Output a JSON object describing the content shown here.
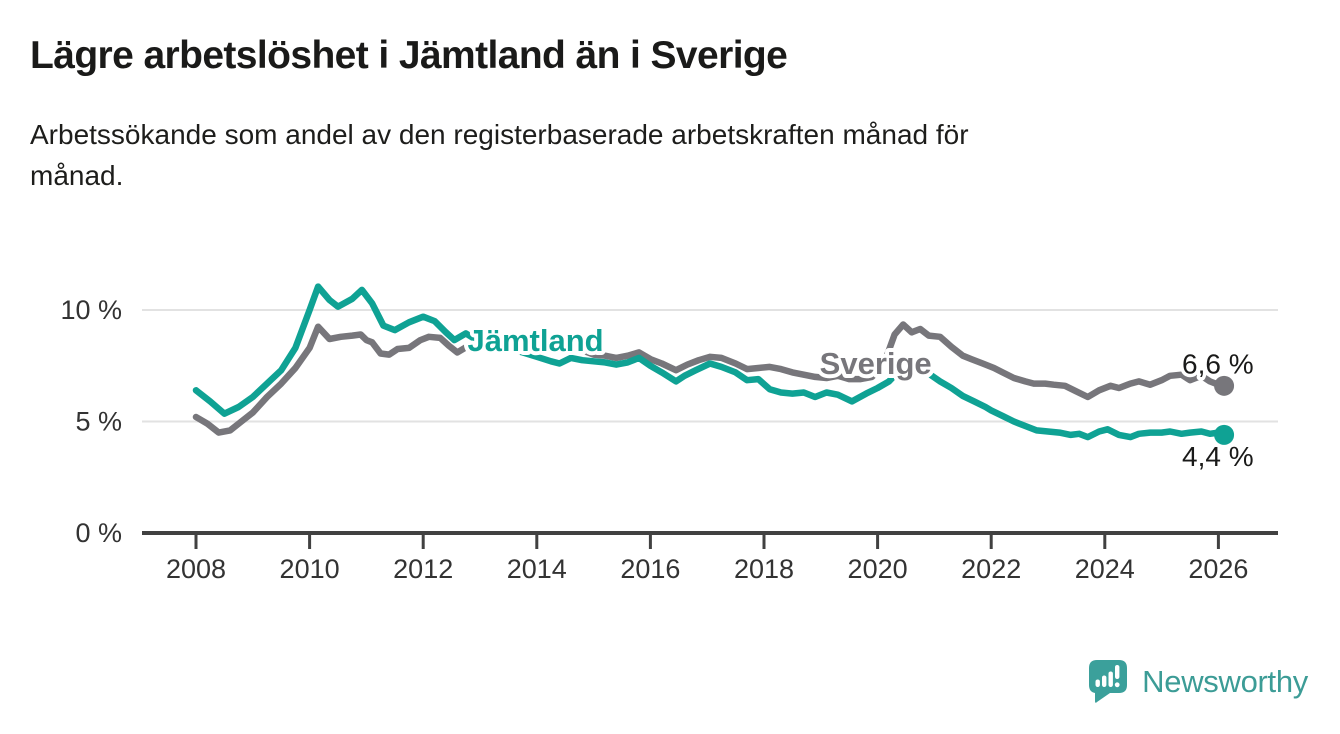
{
  "header": {
    "title": "Lägre arbetslöshet i Jämtland än i Sverige",
    "subtitle": "Arbetssökande som andel av den registerbaserade arbetskraften månad för månad."
  },
  "colors": {
    "jamtland": "#0FA294",
    "sverige": "#77767B",
    "grid": "#E2E2E2",
    "axis": "#414141",
    "tick_text": "#333333",
    "annotation_text": "#1A1A19",
    "logo": "#3BA09B",
    "brand_text": "#3C9C96"
  },
  "chart_data": {
    "type": "line",
    "title": "Lägre arbetslöshet i Jämtland än i Sverige",
    "subtitle": "Arbetssökande som andel av den registerbaserade arbetskraften månad för månad.",
    "unit": "%",
    "xlabel": "",
    "ylabel": "",
    "grid": "horizontal-only",
    "legend_position": "inline-labels",
    "xlim": [
      2007.05,
      2027.1
    ],
    "ylim": [
      0,
      11.5
    ],
    "x_ticks": [
      {
        "value": 2008,
        "label": "2008"
      },
      {
        "value": 2010,
        "label": "2010"
      },
      {
        "value": 2012,
        "label": "2012"
      },
      {
        "value": 2014,
        "label": "2014"
      },
      {
        "value": 2016,
        "label": "2016"
      },
      {
        "value": 2018,
        "label": "2018"
      },
      {
        "value": 2020,
        "label": "2020"
      },
      {
        "value": 2022,
        "label": "2022"
      },
      {
        "value": 2024,
        "label": "2024"
      },
      {
        "value": 2026,
        "label": "2026"
      }
    ],
    "y_ticks": [
      {
        "value": 0,
        "label": "0 %"
      },
      {
        "value": 5,
        "label": "5 %"
      },
      {
        "value": 10,
        "label": "10 %"
      }
    ],
    "series": [
      {
        "name": "Sverige",
        "color": "#77767B",
        "end_value": 6.6,
        "end_label": "6,6 %",
        "points": [
          [
            2008.0,
            5.2
          ],
          [
            2008.2,
            4.9
          ],
          [
            2008.4,
            4.5
          ],
          [
            2008.6,
            4.6
          ],
          [
            2008.8,
            5.0
          ],
          [
            2009.0,
            5.4
          ],
          [
            2009.25,
            6.1
          ],
          [
            2009.5,
            6.7
          ],
          [
            2009.75,
            7.4
          ],
          [
            2010.0,
            8.3
          ],
          [
            2010.15,
            9.25
          ],
          [
            2010.35,
            8.7
          ],
          [
            2010.55,
            8.8
          ],
          [
            2010.75,
            8.85
          ],
          [
            2010.9,
            8.9
          ],
          [
            2011.0,
            8.65
          ],
          [
            2011.1,
            8.55
          ],
          [
            2011.25,
            8.05
          ],
          [
            2011.4,
            8.0
          ],
          [
            2011.55,
            8.25
          ],
          [
            2011.75,
            8.3
          ],
          [
            2011.95,
            8.65
          ],
          [
            2012.1,
            8.8
          ],
          [
            2012.3,
            8.75
          ],
          [
            2012.45,
            8.4
          ],
          [
            2012.6,
            8.1
          ],
          [
            2012.8,
            8.4
          ],
          [
            2013.0,
            8.45
          ],
          [
            2013.2,
            8.3
          ],
          [
            2013.4,
            8.2
          ],
          [
            2013.6,
            8.25
          ],
          [
            2013.8,
            8.15
          ],
          [
            2014.0,
            8.1
          ],
          [
            2014.2,
            8.2
          ],
          [
            2014.45,
            8.3
          ],
          [
            2014.65,
            8.35
          ],
          [
            2014.85,
            8.15
          ],
          [
            2015.0,
            8.0
          ],
          [
            2015.2,
            7.95
          ],
          [
            2015.4,
            7.85
          ],
          [
            2015.6,
            7.95
          ],
          [
            2015.8,
            8.1
          ],
          [
            2016.0,
            7.8
          ],
          [
            2016.2,
            7.6
          ],
          [
            2016.45,
            7.3
          ],
          [
            2016.65,
            7.55
          ],
          [
            2016.85,
            7.75
          ],
          [
            2017.05,
            7.9
          ],
          [
            2017.25,
            7.85
          ],
          [
            2017.5,
            7.6
          ],
          [
            2017.7,
            7.35
          ],
          [
            2017.9,
            7.4
          ],
          [
            2018.1,
            7.45
          ],
          [
            2018.3,
            7.35
          ],
          [
            2018.5,
            7.2
          ],
          [
            2018.7,
            7.1
          ],
          [
            2018.9,
            7.0
          ],
          [
            2019.1,
            6.95
          ],
          [
            2019.3,
            7.05
          ],
          [
            2019.5,
            6.9
          ],
          [
            2019.7,
            6.9
          ],
          [
            2019.9,
            7.0
          ],
          [
            2020.1,
            7.5
          ],
          [
            2020.3,
            8.9
          ],
          [
            2020.45,
            9.35
          ],
          [
            2020.6,
            9.0
          ],
          [
            2020.75,
            9.15
          ],
          [
            2020.9,
            8.85
          ],
          [
            2021.1,
            8.8
          ],
          [
            2021.3,
            8.35
          ],
          [
            2021.5,
            7.95
          ],
          [
            2021.65,
            7.8
          ],
          [
            2021.85,
            7.6
          ],
          [
            2022.05,
            7.4
          ],
          [
            2022.2,
            7.2
          ],
          [
            2022.4,
            6.95
          ],
          [
            2022.6,
            6.8
          ],
          [
            2022.75,
            6.7
          ],
          [
            2022.95,
            6.7
          ],
          [
            2023.1,
            6.65
          ],
          [
            2023.3,
            6.6
          ],
          [
            2023.5,
            6.35
          ],
          [
            2023.7,
            6.1
          ],
          [
            2023.9,
            6.4
          ],
          [
            2024.1,
            6.6
          ],
          [
            2024.25,
            6.5
          ],
          [
            2024.45,
            6.7
          ],
          [
            2024.6,
            6.8
          ],
          [
            2024.8,
            6.65
          ],
          [
            2025.0,
            6.85
          ],
          [
            2025.15,
            7.05
          ],
          [
            2025.35,
            7.1
          ],
          [
            2025.5,
            6.85
          ],
          [
            2025.7,
            7.05
          ],
          [
            2025.85,
            6.8
          ],
          [
            2026.0,
            6.65
          ],
          [
            2026.1,
            6.6
          ]
        ]
      },
      {
        "name": "Jämtland",
        "color": "#0FA294",
        "end_value": 4.4,
        "end_label": "4,4 %",
        "points": [
          [
            2008.0,
            6.4
          ],
          [
            2008.25,
            5.9
          ],
          [
            2008.5,
            5.35
          ],
          [
            2008.75,
            5.65
          ],
          [
            2009.0,
            6.1
          ],
          [
            2009.25,
            6.7
          ],
          [
            2009.5,
            7.3
          ],
          [
            2009.75,
            8.3
          ],
          [
            2010.0,
            10.0
          ],
          [
            2010.15,
            11.05
          ],
          [
            2010.35,
            10.45
          ],
          [
            2010.5,
            10.15
          ],
          [
            2010.75,
            10.5
          ],
          [
            2010.92,
            10.9
          ],
          [
            2011.1,
            10.3
          ],
          [
            2011.3,
            9.3
          ],
          [
            2011.5,
            9.1
          ],
          [
            2011.75,
            9.45
          ],
          [
            2012.0,
            9.7
          ],
          [
            2012.2,
            9.5
          ],
          [
            2012.4,
            9.0
          ],
          [
            2012.55,
            8.65
          ],
          [
            2012.75,
            8.95
          ],
          [
            2013.0,
            8.55
          ],
          [
            2013.25,
            8.35
          ],
          [
            2013.5,
            8.25
          ],
          [
            2013.75,
            8.1
          ],
          [
            2014.0,
            7.9
          ],
          [
            2014.25,
            7.7
          ],
          [
            2014.4,
            7.6
          ],
          [
            2014.6,
            7.85
          ],
          [
            2014.8,
            7.75
          ],
          [
            2015.0,
            7.7
          ],
          [
            2015.2,
            7.65
          ],
          [
            2015.4,
            7.55
          ],
          [
            2015.6,
            7.65
          ],
          [
            2015.8,
            7.85
          ],
          [
            2016.0,
            7.5
          ],
          [
            2016.2,
            7.2
          ],
          [
            2016.45,
            6.8
          ],
          [
            2016.6,
            7.05
          ],
          [
            2016.8,
            7.3
          ],
          [
            2017.05,
            7.6
          ],
          [
            2017.25,
            7.45
          ],
          [
            2017.5,
            7.2
          ],
          [
            2017.7,
            6.85
          ],
          [
            2017.9,
            6.9
          ],
          [
            2018.1,
            6.45
          ],
          [
            2018.3,
            6.3
          ],
          [
            2018.5,
            6.25
          ],
          [
            2018.7,
            6.3
          ],
          [
            2018.9,
            6.1
          ],
          [
            2019.1,
            6.3
          ],
          [
            2019.3,
            6.2
          ],
          [
            2019.55,
            5.9
          ],
          [
            2019.8,
            6.25
          ],
          [
            2020.0,
            6.5
          ],
          [
            2020.2,
            6.8
          ],
          [
            2020.5,
            7.6
          ],
          [
            2020.7,
            7.5
          ],
          [
            2020.9,
            7.15
          ],
          [
            2021.1,
            6.8
          ],
          [
            2021.3,
            6.5
          ],
          [
            2021.5,
            6.15
          ],
          [
            2021.7,
            5.9
          ],
          [
            2021.9,
            5.65
          ],
          [
            2022.0,
            5.5
          ],
          [
            2022.2,
            5.25
          ],
          [
            2022.4,
            5.0
          ],
          [
            2022.6,
            4.8
          ],
          [
            2022.8,
            4.6
          ],
          [
            2023.0,
            4.55
          ],
          [
            2023.2,
            4.5
          ],
          [
            2023.4,
            4.4
          ],
          [
            2023.55,
            4.45
          ],
          [
            2023.7,
            4.3
          ],
          [
            2023.9,
            4.55
          ],
          [
            2024.05,
            4.65
          ],
          [
            2024.25,
            4.4
          ],
          [
            2024.45,
            4.3
          ],
          [
            2024.6,
            4.45
          ],
          [
            2024.8,
            4.5
          ],
          [
            2025.0,
            4.5
          ],
          [
            2025.15,
            4.55
          ],
          [
            2025.35,
            4.45
          ],
          [
            2025.5,
            4.5
          ],
          [
            2025.7,
            4.55
          ],
          [
            2025.85,
            4.45
          ],
          [
            2026.0,
            4.5
          ],
          [
            2026.1,
            4.4
          ]
        ]
      }
    ],
    "series_labels": [
      {
        "text": "Jämtland",
        "color": "#0FA294",
        "x_year": 2012.78,
        "y_value": 8.65
      },
      {
        "text": "Sverige",
        "color": "#77767B",
        "x_year": 2018.98,
        "y_value": 7.62
      }
    ],
    "end_annotations": [
      {
        "text": "6,6 %",
        "x_year": 2026.62,
        "y_value": 7.15
      },
      {
        "text": "4,4 %",
        "x_year": 2026.62,
        "y_value": 3.0
      }
    ]
  },
  "footer": {
    "brand": "Newsworthy",
    "logo_icon": "newsworthy-speech-bubble-bar-chart"
  }
}
